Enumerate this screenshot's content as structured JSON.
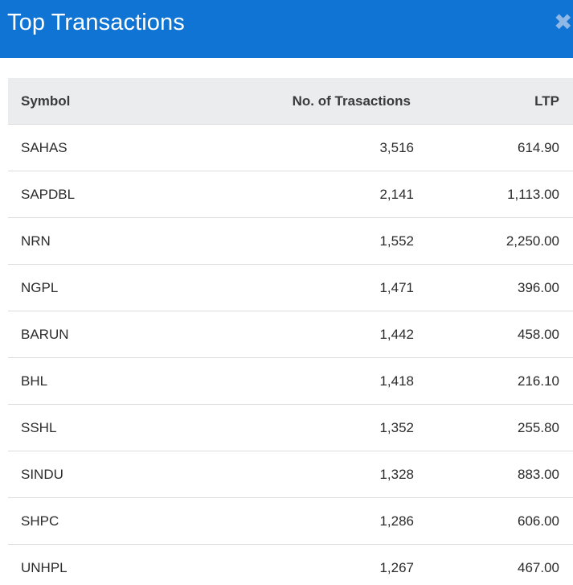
{
  "header": {
    "title": "Top Transactions",
    "close_icon": "close-icon",
    "background": "#0f74d3"
  },
  "table": {
    "columns": [
      "Symbol",
      "No. of Trasactions",
      "LTP"
    ],
    "rows": [
      {
        "symbol": "SAHAS",
        "transactions": "3,516",
        "ltp": "614.90"
      },
      {
        "symbol": "SAPDBL",
        "transactions": "2,141",
        "ltp": "1,113.00"
      },
      {
        "symbol": "NRN",
        "transactions": "1,552",
        "ltp": "2,250.00"
      },
      {
        "symbol": "NGPL",
        "transactions": "1,471",
        "ltp": "396.00"
      },
      {
        "symbol": "BARUN",
        "transactions": "1,442",
        "ltp": "458.00"
      },
      {
        "symbol": "BHL",
        "transactions": "1,418",
        "ltp": "216.10"
      },
      {
        "symbol": "SSHL",
        "transactions": "1,352",
        "ltp": "255.80"
      },
      {
        "symbol": "SINDU",
        "transactions": "1,328",
        "ltp": "883.00"
      },
      {
        "symbol": "SHPC",
        "transactions": "1,286",
        "ltp": "606.00"
      },
      {
        "symbol": "UNHPL",
        "transactions": "1,267",
        "ltp": "467.00"
      }
    ]
  }
}
